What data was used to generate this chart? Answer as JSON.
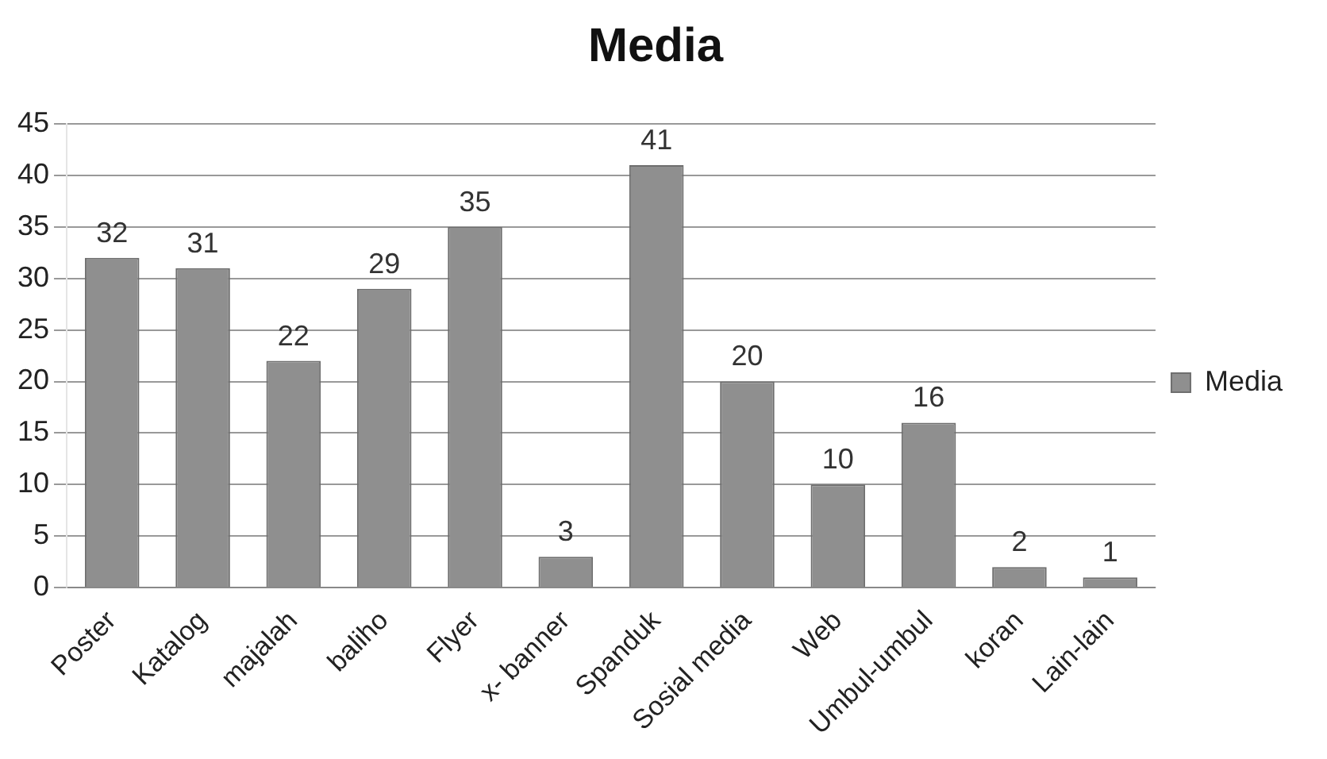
{
  "chart_data": {
    "type": "bar",
    "title": "Media",
    "categories": [
      "Poster",
      "Katalog",
      "majalah",
      "baliho",
      "Flyer",
      "x- banner",
      "Spanduk",
      "Sosial media",
      "Web",
      "Umbul-umbul",
      "koran",
      "Lain-lain"
    ],
    "series": [
      {
        "name": "Media",
        "color": "#8f8f8f",
        "values": [
          32,
          31,
          22,
          29,
          35,
          3,
          41,
          20,
          10,
          16,
          2,
          1
        ]
      }
    ],
    "ylim": [
      0,
      45
    ],
    "yticks": [
      0,
      5,
      10,
      15,
      20,
      25,
      30,
      35,
      40,
      45
    ],
    "grid": "y",
    "legend": "right",
    "data_labels": true
  }
}
